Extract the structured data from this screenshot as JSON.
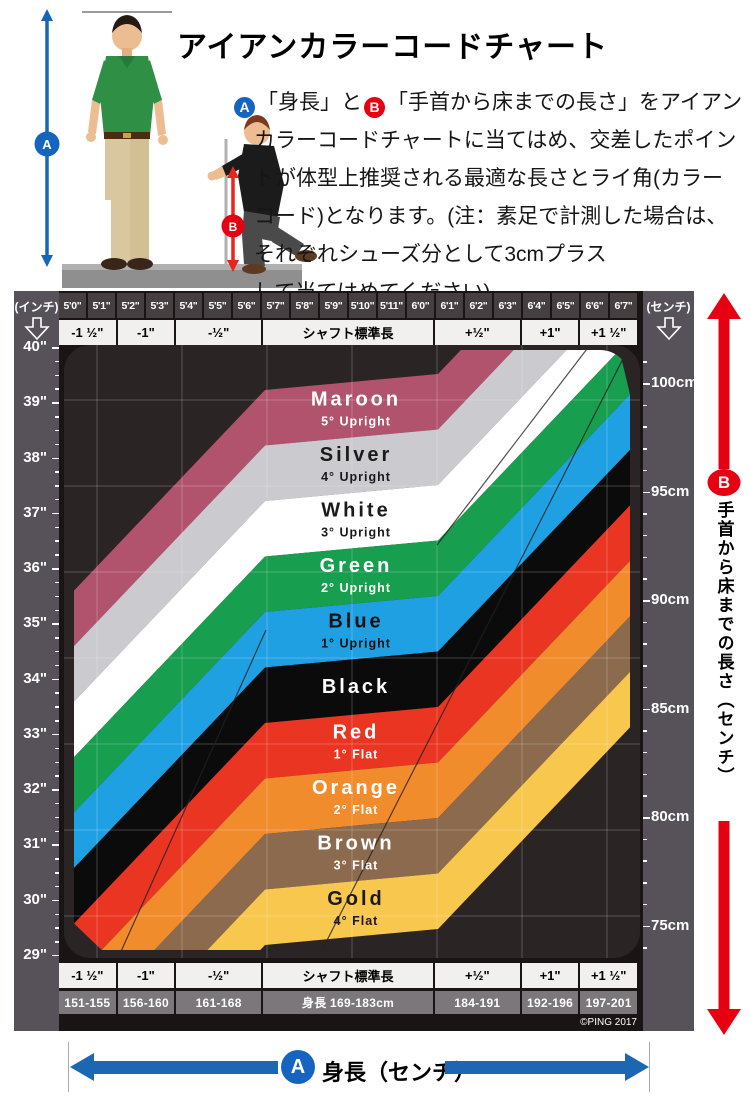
{
  "title": "アイアンカラーコードチャート",
  "intro": {
    "badge_a": "A",
    "badge_b": "B",
    "line1_a": "「身長」と",
    "line1_b": "「手首から床までの長さ」をアイアン",
    "line2": "カラーコードチャートに当てはめ、交差したポイン",
    "line3": "トが体型上推奨される最適な長さとライ角(カラー",
    "line4": "コード)となります。(注：素足で計測した場合は、",
    "line5": "それぞれシューズ分として3cmプラス",
    "line6": "して当てはめてください)"
  },
  "chart_data": {
    "type": "area",
    "title": "アイアンカラーコードチャート",
    "xlabel": "身長（センチ）",
    "ylabel": "手首から床までの長さ（センチ）",
    "inch_label": "(インチ)",
    "cm_label": "(センチ)",
    "x_heights": [
      "5'0\"",
      "5'1\"",
      "5'2\"",
      "5'3\"",
      "5'4\"",
      "5'5\"",
      "5'6\"",
      "5'7\"",
      "5'8\"",
      "5'9\"",
      "5'10\"",
      "5'11\"",
      "6'0\"",
      "6'1\"",
      "6'2\"",
      "6'3\"",
      "6'4\"",
      "6'5\"",
      "6'6\"",
      "6'7\""
    ],
    "adjust_groups": [
      {
        "label": "-1 ½\"",
        "span": 2,
        "range": "151-155"
      },
      {
        "label": "-1\"",
        "span": 2,
        "range": "156-160"
      },
      {
        "label": "-½\"",
        "span": 3,
        "range": "161-168"
      },
      {
        "label": "シャフト標準長",
        "span": 6,
        "range": "身長 169-183cm"
      },
      {
        "label": "+½\"",
        "span": 3,
        "range": "184-191"
      },
      {
        "label": "+1\"",
        "span": 2,
        "range": "192-196"
      },
      {
        "label": "+1 ½\"",
        "span": 2,
        "range": "197-201"
      }
    ],
    "y_axis_inches": [
      "40\"",
      "39\"",
      "38\"",
      "37\"",
      "36\"",
      "35\"",
      "34\"",
      "33\"",
      "32\"",
      "31\"",
      "30\"",
      "29\""
    ],
    "y_axis_inches_values": [
      40,
      39,
      38,
      37,
      36,
      35,
      34,
      33,
      32,
      31,
      30,
      29
    ],
    "y_axis_cm": [
      "100cm",
      "95cm",
      "90cm",
      "85cm",
      "80cm",
      "75cm"
    ],
    "y_axis_cm_values": [
      100,
      95,
      90,
      85,
      80,
      75
    ],
    "bands": [
      {
        "name": "Maroon",
        "sub": "5° Upright",
        "color": "#b2536e",
        "label_color": "#ffffff"
      },
      {
        "name": "Silver",
        "sub": "4° Upright",
        "color": "#cbcbcf",
        "label_color": "#1a1a1a"
      },
      {
        "name": "White",
        "sub": "3° Upright",
        "color": "#ffffff",
        "label_color": "#1a1a1a"
      },
      {
        "name": "Green",
        "sub": "2° Upright",
        "color": "#189e4f",
        "label_color": "#ffffff"
      },
      {
        "name": "Blue",
        "sub": "1° Upright",
        "color": "#1fa0e2",
        "label_color": "#111111"
      },
      {
        "name": "Black",
        "sub": "",
        "color": "#0b0b0b",
        "label_color": "#ffffff"
      },
      {
        "name": "Red",
        "sub": "1° Flat",
        "color": "#ea3522",
        "label_color": "#ffffff"
      },
      {
        "name": "Orange",
        "sub": "2° Flat",
        "color": "#f18c2d",
        "label_color": "#ffffff"
      },
      {
        "name": "Brown",
        "sub": "3° Flat",
        "color": "#8b6a4e",
        "label_color": "#ffffff"
      },
      {
        "name": "Gold",
        "sub": "4° Flat",
        "color": "#f7c74e",
        "label_color": "#1a1a1a"
      }
    ],
    "copyright": "©PING 2017"
  },
  "arrows": {
    "height_label": "身長（センチ）",
    "wrist_label": "手首から床までの長さ（センチ）",
    "badge_a": "A",
    "badge_b": "B",
    "blue": "#1b67b1",
    "red": "#e60012"
  }
}
